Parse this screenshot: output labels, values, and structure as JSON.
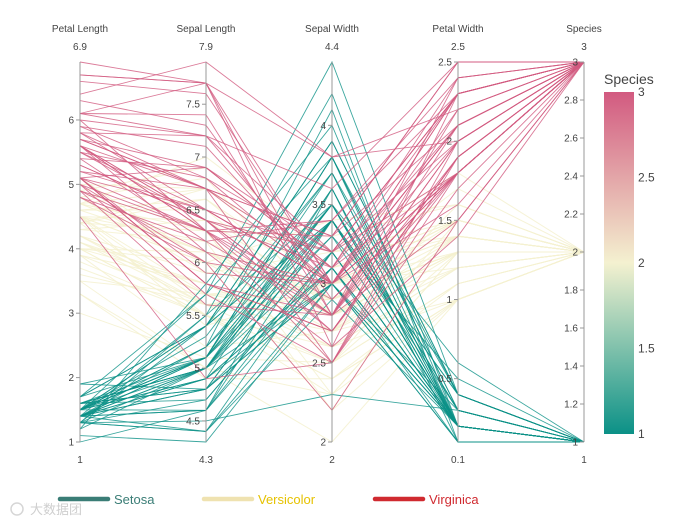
{
  "chart_data": {
    "type": "parallel_coordinates",
    "dimensions": [
      {
        "label": "Petal Length",
        "range": [
          1,
          6.9
        ],
        "ticks": [
          1,
          2,
          3,
          4,
          5,
          6
        ],
        "tick_labels": [
          "1",
          "2",
          "3",
          "4",
          "5",
          "6"
        ],
        "min_label": "1",
        "max_label": "6.9"
      },
      {
        "label": "Sepal Length",
        "range": [
          4.3,
          7.9
        ],
        "ticks": [
          4.5,
          5,
          5.5,
          6,
          6.5,
          7,
          7.5
        ],
        "tick_labels": [
          "4.5",
          "5",
          "5.5",
          "6",
          "6.5",
          "7",
          "7.5"
        ],
        "min_label": "4.3",
        "max_label": "7.9"
      },
      {
        "label": "Sepal Width",
        "range": [
          2,
          4.4
        ],
        "ticks": [
          2,
          2.5,
          3,
          3.5,
          4
        ],
        "tick_labels": [
          "2",
          "2.5",
          "3",
          "3.5",
          "4"
        ],
        "min_label": "2",
        "max_label": "4.4"
      },
      {
        "label": "Petal Width",
        "range": [
          0.1,
          2.5
        ],
        "ticks": [
          0.5,
          1,
          1.5,
          2,
          2.5
        ],
        "tick_labels": [
          "0.5",
          "1",
          "1.5",
          "2",
          "2.5"
        ],
        "min_label": "0.1",
        "max_label": "2.5"
      },
      {
        "label": "Species",
        "range": [
          1,
          3
        ],
        "ticks": [
          1,
          1.2,
          1.4,
          1.6,
          1.8,
          2,
          2.2,
          2.4,
          2.6,
          2.8,
          3
        ],
        "tick_labels": [
          "1",
          "1.2",
          "1.4",
          "1.6",
          "1.8",
          "2",
          "2.2",
          "2.4",
          "2.6",
          "2.8",
          "3"
        ],
        "min_label": "1",
        "max_label": "3"
      }
    ],
    "colorbar": {
      "title": "Species",
      "range": [
        1,
        3
      ],
      "ticks": [
        1,
        1.5,
        2,
        2.5,
        3
      ],
      "tick_labels": [
        "1",
        "1.5",
        "2",
        "2.5",
        "3"
      ],
      "colorscale": [
        "#0b9187",
        "#f4f1d0",
        "#d25a80"
      ]
    },
    "legend": [
      {
        "label": "Setosa",
        "line_color": "#3a7d76",
        "text_color": "#3a7d76"
      },
      {
        "label": "Versicolor",
        "line_color": "#efe2b0",
        "text_color": "#e6c200"
      },
      {
        "label": "Virginica",
        "line_color": "#d02a30",
        "text_color": "#d02a30"
      }
    ],
    "records": [
      [
        1.4,
        5.1,
        3.5,
        0.2,
        1
      ],
      [
        1.4,
        4.9,
        3.0,
        0.2,
        1
      ],
      [
        1.3,
        4.7,
        3.2,
        0.2,
        1
      ],
      [
        1.5,
        4.6,
        3.1,
        0.2,
        1
      ],
      [
        1.4,
        5.0,
        3.6,
        0.2,
        1
      ],
      [
        1.7,
        5.4,
        3.9,
        0.4,
        1
      ],
      [
        1.4,
        4.6,
        3.4,
        0.3,
        1
      ],
      [
        1.5,
        5.0,
        3.4,
        0.2,
        1
      ],
      [
        1.4,
        4.4,
        2.9,
        0.2,
        1
      ],
      [
        1.5,
        4.9,
        3.1,
        0.1,
        1
      ],
      [
        1.5,
        5.4,
        3.7,
        0.2,
        1
      ],
      [
        1.6,
        4.8,
        3.4,
        0.2,
        1
      ],
      [
        1.4,
        4.8,
        3.0,
        0.1,
        1
      ],
      [
        1.1,
        4.3,
        3.0,
        0.1,
        1
      ],
      [
        1.2,
        5.8,
        4.0,
        0.2,
        1
      ],
      [
        1.5,
        5.7,
        4.4,
        0.4,
        1
      ],
      [
        1.3,
        5.4,
        3.9,
        0.4,
        1
      ],
      [
        1.4,
        5.1,
        3.5,
        0.3,
        1
      ],
      [
        1.7,
        5.7,
        3.8,
        0.3,
        1
      ],
      [
        1.5,
        5.1,
        3.8,
        0.3,
        1
      ],
      [
        1.7,
        5.4,
        3.4,
        0.2,
        1
      ],
      [
        1.5,
        5.1,
        3.7,
        0.4,
        1
      ],
      [
        1.0,
        4.6,
        3.6,
        0.2,
        1
      ],
      [
        1.7,
        5.1,
        3.3,
        0.5,
        1
      ],
      [
        1.9,
        4.8,
        3.4,
        0.2,
        1
      ],
      [
        1.6,
        5.0,
        3.0,
        0.2,
        1
      ],
      [
        1.6,
        5.0,
        3.4,
        0.4,
        1
      ],
      [
        1.5,
        5.2,
        3.5,
        0.2,
        1
      ],
      [
        1.4,
        5.2,
        3.4,
        0.2,
        1
      ],
      [
        1.6,
        4.7,
        3.2,
        0.2,
        1
      ],
      [
        1.6,
        4.8,
        3.1,
        0.2,
        1
      ],
      [
        1.5,
        5.4,
        3.4,
        0.4,
        1
      ],
      [
        1.5,
        5.2,
        4.1,
        0.1,
        1
      ],
      [
        1.4,
        5.5,
        4.2,
        0.2,
        1
      ],
      [
        1.5,
        4.9,
        3.1,
        0.2,
        1
      ],
      [
        1.2,
        5.0,
        3.2,
        0.2,
        1
      ],
      [
        1.3,
        5.5,
        3.5,
        0.2,
        1
      ],
      [
        1.4,
        4.9,
        3.6,
        0.1,
        1
      ],
      [
        1.3,
        4.4,
        3.0,
        0.2,
        1
      ],
      [
        1.5,
        5.1,
        3.4,
        0.2,
        1
      ],
      [
        1.3,
        5.0,
        3.5,
        0.3,
        1
      ],
      [
        1.3,
        4.5,
        2.3,
        0.3,
        1
      ],
      [
        1.3,
        4.4,
        3.2,
        0.2,
        1
      ],
      [
        1.6,
        5.0,
        3.5,
        0.6,
        1
      ],
      [
        1.9,
        5.1,
        3.8,
        0.4,
        1
      ],
      [
        1.4,
        4.8,
        3.0,
        0.3,
        1
      ],
      [
        1.6,
        5.1,
        3.8,
        0.2,
        1
      ],
      [
        1.4,
        4.6,
        3.2,
        0.2,
        1
      ],
      [
        1.5,
        5.3,
        3.7,
        0.2,
        1
      ],
      [
        1.4,
        5.0,
        3.3,
        0.2,
        1
      ],
      [
        4.7,
        7.0,
        3.2,
        1.4,
        2
      ],
      [
        4.5,
        6.4,
        3.2,
        1.5,
        2
      ],
      [
        4.9,
        6.9,
        3.1,
        1.5,
        2
      ],
      [
        4.0,
        5.5,
        2.3,
        1.3,
        2
      ],
      [
        4.6,
        6.5,
        2.8,
        1.5,
        2
      ],
      [
        4.5,
        5.7,
        2.8,
        1.3,
        2
      ],
      [
        4.7,
        6.3,
        3.3,
        1.6,
        2
      ],
      [
        3.3,
        4.9,
        2.4,
        1.0,
        2
      ],
      [
        4.6,
        6.6,
        2.9,
        1.3,
        2
      ],
      [
        3.9,
        5.2,
        2.7,
        1.4,
        2
      ],
      [
        3.5,
        5.0,
        2.0,
        1.0,
        2
      ],
      [
        4.2,
        5.9,
        3.0,
        1.5,
        2
      ],
      [
        4.0,
        6.0,
        2.2,
        1.0,
        2
      ],
      [
        4.7,
        6.1,
        2.9,
        1.4,
        2
      ],
      [
        3.6,
        5.6,
        2.9,
        1.3,
        2
      ],
      [
        4.4,
        6.7,
        3.1,
        1.4,
        2
      ],
      [
        4.5,
        5.6,
        3.0,
        1.5,
        2
      ],
      [
        4.1,
        5.8,
        2.7,
        1.0,
        2
      ],
      [
        4.5,
        6.2,
        2.2,
        1.5,
        2
      ],
      [
        3.9,
        5.6,
        2.5,
        1.1,
        2
      ],
      [
        4.8,
        5.9,
        3.2,
        1.8,
        2
      ],
      [
        4.0,
        6.1,
        2.8,
        1.3,
        2
      ],
      [
        4.9,
        6.3,
        2.5,
        1.5,
        2
      ],
      [
        4.7,
        6.1,
        2.8,
        1.2,
        2
      ],
      [
        4.3,
        6.4,
        2.9,
        1.3,
        2
      ],
      [
        4.4,
        6.6,
        3.0,
        1.4,
        2
      ],
      [
        4.8,
        6.8,
        2.8,
        1.4,
        2
      ],
      [
        5.0,
        6.7,
        3.0,
        1.7,
        2
      ],
      [
        4.5,
        6.0,
        2.9,
        1.5,
        2
      ],
      [
        3.5,
        5.7,
        2.6,
        1.0,
        2
      ],
      [
        3.8,
        5.5,
        2.4,
        1.1,
        2
      ],
      [
        3.7,
        5.5,
        2.4,
        1.0,
        2
      ],
      [
        3.9,
        5.8,
        2.7,
        1.2,
        2
      ],
      [
        5.1,
        6.0,
        2.7,
        1.6,
        2
      ],
      [
        4.5,
        5.4,
        3.0,
        1.5,
        2
      ],
      [
        4.5,
        6.0,
        3.4,
        1.6,
        2
      ],
      [
        4.7,
        6.7,
        3.1,
        1.5,
        2
      ],
      [
        4.4,
        6.3,
        2.3,
        1.3,
        2
      ],
      [
        4.1,
        5.6,
        3.0,
        1.3,
        2
      ],
      [
        4.0,
        5.5,
        2.5,
        1.3,
        2
      ],
      [
        4.4,
        5.5,
        2.6,
        1.2,
        2
      ],
      [
        4.6,
        6.1,
        3.0,
        1.4,
        2
      ],
      [
        4.0,
        5.8,
        2.6,
        1.2,
        2
      ],
      [
        3.3,
        5.0,
        2.3,
        1.0,
        2
      ],
      [
        4.2,
        5.6,
        2.7,
        1.3,
        2
      ],
      [
        4.2,
        5.7,
        3.0,
        1.2,
        2
      ],
      [
        4.2,
        5.7,
        2.9,
        1.3,
        2
      ],
      [
        4.3,
        6.2,
        2.9,
        1.3,
        2
      ],
      [
        3.0,
        5.1,
        2.5,
        1.1,
        2
      ],
      [
        4.1,
        5.7,
        2.8,
        1.3,
        2
      ],
      [
        6.0,
        6.3,
        3.3,
        2.5,
        3
      ],
      [
        5.1,
        5.8,
        2.7,
        1.9,
        3
      ],
      [
        5.9,
        7.1,
        3.0,
        2.1,
        3
      ],
      [
        5.6,
        6.3,
        2.9,
        1.8,
        3
      ],
      [
        5.8,
        6.5,
        3.0,
        2.2,
        3
      ],
      [
        6.6,
        7.6,
        3.0,
        2.1,
        3
      ],
      [
        4.5,
        4.9,
        2.5,
        1.7,
        3
      ],
      [
        6.3,
        7.3,
        2.9,
        1.8,
        3
      ],
      [
        5.8,
        6.7,
        2.5,
        1.8,
        3
      ],
      [
        6.1,
        7.2,
        3.6,
        2.5,
        3
      ],
      [
        5.1,
        6.5,
        3.2,
        2.0,
        3
      ],
      [
        5.3,
        6.4,
        2.7,
        1.9,
        3
      ],
      [
        5.5,
        6.8,
        3.0,
        2.1,
        3
      ],
      [
        5.0,
        5.7,
        2.5,
        2.0,
        3
      ],
      [
        5.1,
        5.8,
        2.8,
        2.4,
        3
      ],
      [
        5.3,
        6.4,
        3.2,
        2.3,
        3
      ],
      [
        5.5,
        6.5,
        3.0,
        1.8,
        3
      ],
      [
        6.7,
        7.7,
        3.8,
        2.2,
        3
      ],
      [
        6.9,
        7.7,
        2.6,
        2.3,
        3
      ],
      [
        5.0,
        6.0,
        2.2,
        1.5,
        3
      ],
      [
        5.7,
        6.9,
        3.2,
        2.3,
        3
      ],
      [
        4.9,
        5.6,
        2.8,
        2.0,
        3
      ],
      [
        6.7,
        7.7,
        2.8,
        2.0,
        3
      ],
      [
        4.9,
        6.3,
        2.7,
        1.8,
        3
      ],
      [
        5.7,
        6.7,
        3.3,
        2.1,
        3
      ],
      [
        6.0,
        7.2,
        3.2,
        1.8,
        3
      ],
      [
        4.8,
        6.2,
        2.8,
        1.8,
        3
      ],
      [
        4.9,
        6.1,
        3.0,
        1.8,
        3
      ],
      [
        5.6,
        6.4,
        2.8,
        2.1,
        3
      ],
      [
        5.8,
        7.2,
        3.0,
        1.6,
        3
      ],
      [
        6.1,
        7.4,
        2.8,
        1.9,
        3
      ],
      [
        6.4,
        7.9,
        3.8,
        2.0,
        3
      ],
      [
        5.6,
        6.4,
        2.8,
        2.2,
        3
      ],
      [
        5.1,
        6.3,
        2.8,
        1.5,
        3
      ],
      [
        5.6,
        6.1,
        2.6,
        1.4,
        3
      ],
      [
        6.1,
        7.7,
        3.0,
        2.3,
        3
      ],
      [
        5.6,
        6.3,
        3.4,
        2.4,
        3
      ],
      [
        5.5,
        6.4,
        3.1,
        1.8,
        3
      ],
      [
        4.8,
        6.0,
        3.0,
        1.8,
        3
      ],
      [
        5.4,
        6.9,
        3.1,
        2.1,
        3
      ],
      [
        5.6,
        6.7,
        3.1,
        2.4,
        3
      ],
      [
        5.1,
        6.9,
        3.1,
        2.3,
        3
      ],
      [
        5.1,
        5.8,
        2.7,
        1.9,
        3
      ],
      [
        5.9,
        6.8,
        3.2,
        2.3,
        3
      ],
      [
        5.7,
        6.7,
        3.3,
        2.5,
        3
      ],
      [
        5.2,
        6.7,
        3.0,
        2.3,
        3
      ],
      [
        5.0,
        6.3,
        2.5,
        1.9,
        3
      ],
      [
        5.2,
        6.5,
        3.0,
        2.0,
        3
      ],
      [
        5.4,
        6.2,
        3.4,
        2.3,
        3
      ],
      [
        5.1,
        5.9,
        3.0,
        1.8,
        3
      ]
    ]
  },
  "watermark": "大数据团"
}
